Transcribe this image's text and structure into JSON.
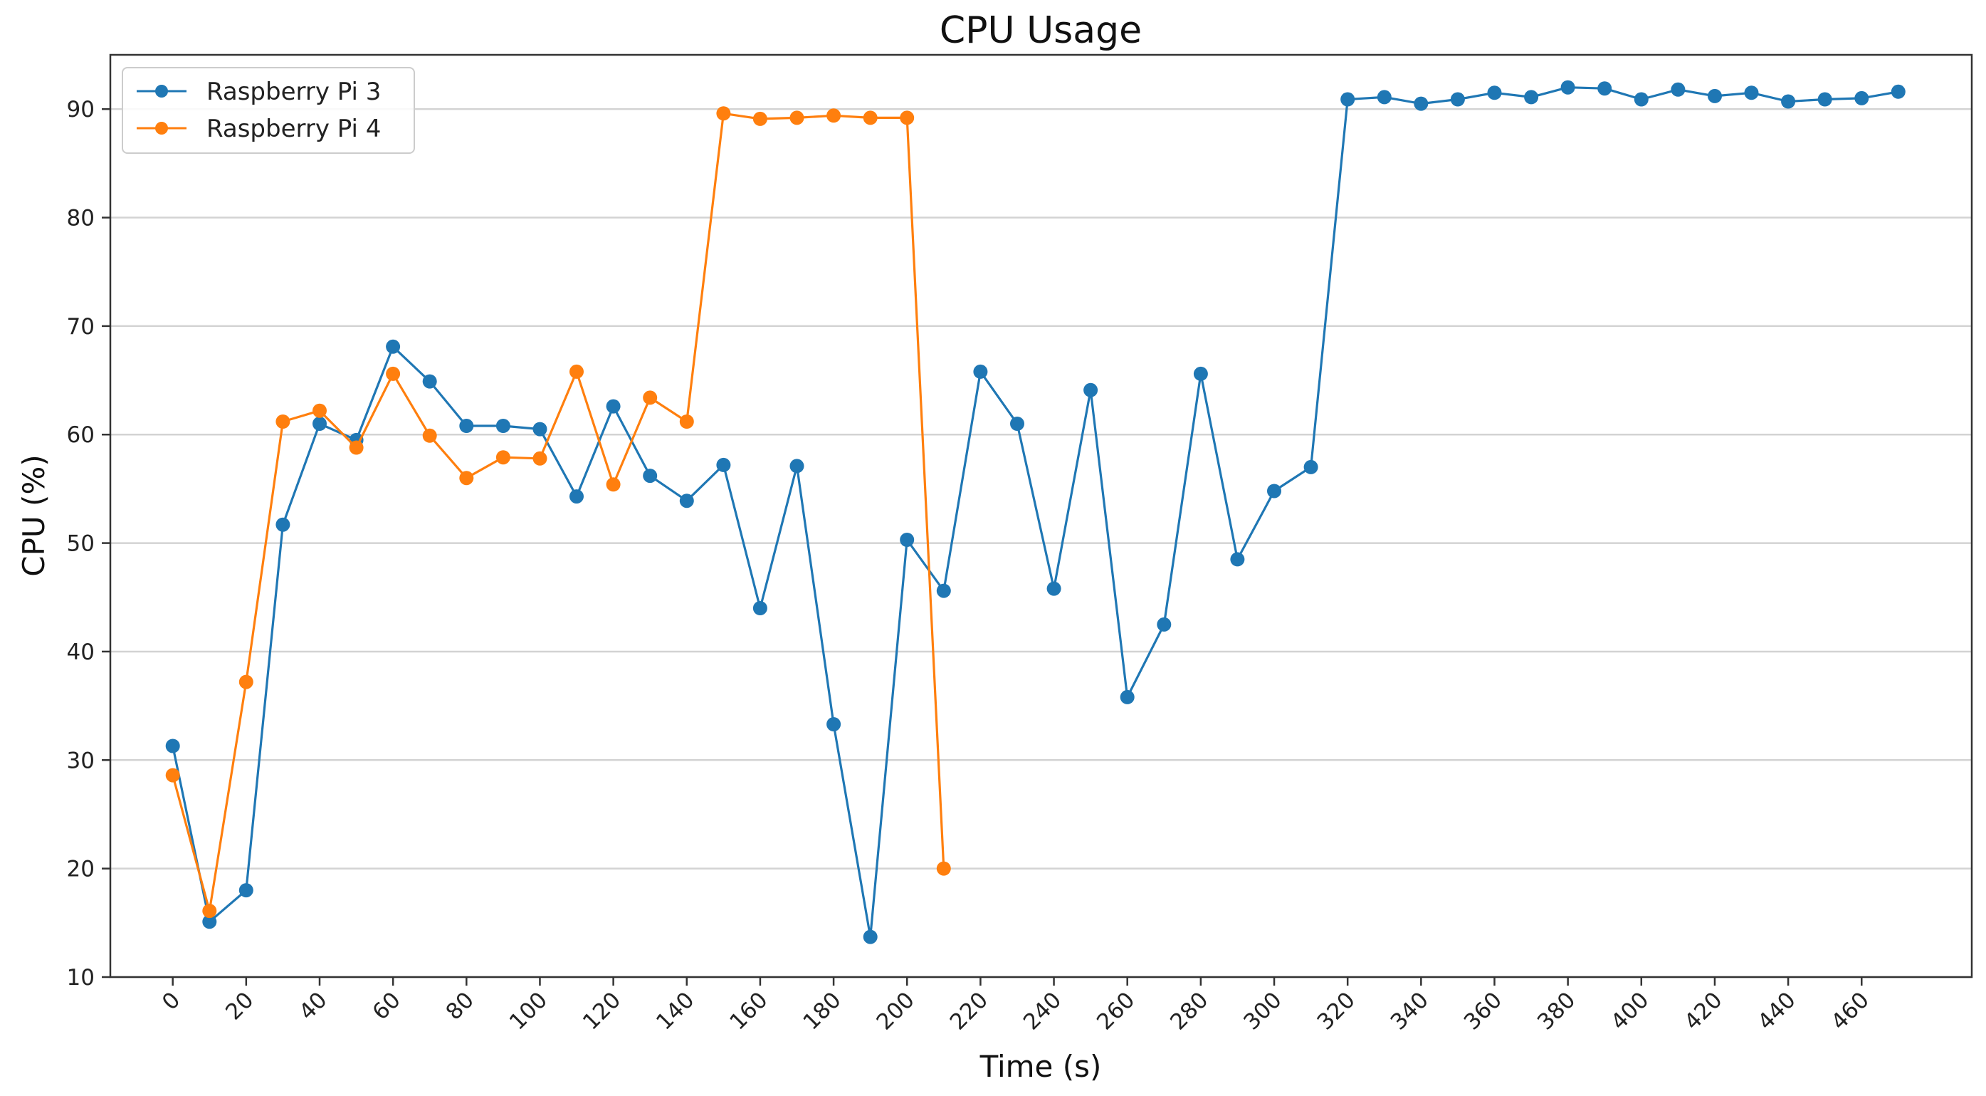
{
  "chart_data": {
    "type": "line",
    "title": "CPU Usage",
    "xlabel": "Time (s)",
    "ylabel": "CPU (%)",
    "xlim": [
      -17,
      490
    ],
    "ylim": [
      10,
      95
    ],
    "xticks": [
      0,
      20,
      40,
      60,
      80,
      100,
      120,
      140,
      160,
      180,
      200,
      220,
      240,
      260,
      280,
      300,
      320,
      340,
      360,
      380,
      400,
      420,
      440,
      460
    ],
    "yticks": [
      10,
      20,
      30,
      40,
      50,
      60,
      70,
      80,
      90
    ],
    "grid": "horizontal",
    "legend_position": "top-left",
    "series": [
      {
        "name": "Raspberry Pi 3",
        "color": "#1f77b4",
        "x": [
          0,
          10,
          20,
          30,
          40,
          50,
          60,
          70,
          80,
          90,
          100,
          110,
          120,
          130,
          140,
          150,
          160,
          170,
          180,
          190,
          200,
          210,
          220,
          230,
          240,
          250,
          260,
          270,
          280,
          290,
          300,
          310,
          320,
          330,
          340,
          350,
          360,
          370,
          380,
          390,
          400,
          410,
          420,
          430,
          440,
          450,
          460,
          470
        ],
        "values": [
          31.3,
          15.1,
          18.0,
          51.7,
          61.0,
          59.5,
          68.1,
          64.9,
          60.8,
          60.8,
          60.5,
          54.3,
          62.6,
          56.2,
          53.9,
          57.2,
          44.0,
          57.1,
          33.3,
          13.7,
          50.3,
          45.6,
          65.8,
          61.0,
          45.8,
          64.1,
          35.8,
          42.5,
          65.6,
          48.5,
          54.8,
          57.0,
          90.9,
          91.1,
          90.5,
          90.9,
          91.5,
          91.1,
          92.0,
          91.9,
          90.9,
          91.8,
          91.2,
          91.5,
          90.7,
          90.9,
          91.0,
          91.6
        ]
      },
      {
        "name": "Raspberry Pi 4",
        "color": "#ff7f0e",
        "x": [
          0,
          10,
          20,
          30,
          40,
          50,
          60,
          70,
          80,
          90,
          100,
          110,
          120,
          130,
          140,
          150,
          160,
          170,
          180,
          190,
          200,
          210
        ],
        "values": [
          28.6,
          16.1,
          37.2,
          61.2,
          62.2,
          58.8,
          65.6,
          59.9,
          56.0,
          57.9,
          57.8,
          65.8,
          55.4,
          63.4,
          61.2,
          89.6,
          89.1,
          89.2,
          89.4,
          89.2,
          89.2,
          20.0
        ]
      }
    ]
  }
}
